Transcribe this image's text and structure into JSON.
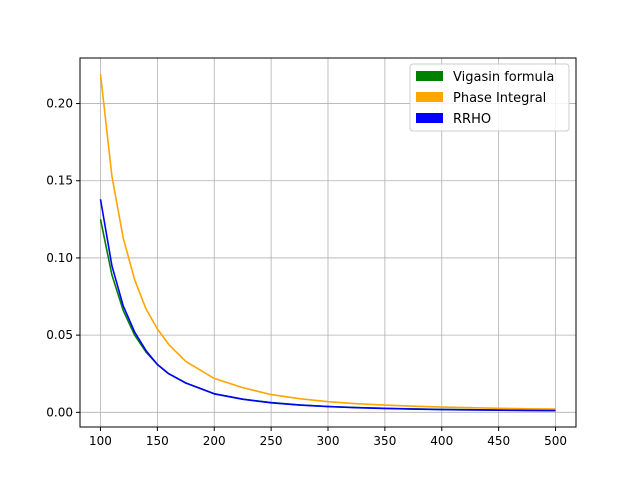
{
  "chart_data": {
    "type": "line",
    "title": "",
    "xlabel": "",
    "ylabel": "",
    "xlim": [
      82,
      518
    ],
    "ylim": [
      -0.0095,
      0.2295
    ],
    "x_ticks": [
      100,
      150,
      200,
      250,
      300,
      350,
      400,
      450,
      500
    ],
    "x_tick_labels": [
      "100",
      "150",
      "200",
      "250",
      "300",
      "350",
      "400",
      "450",
      "500"
    ],
    "y_ticks": [
      0.0,
      0.05,
      0.1,
      0.15,
      0.2
    ],
    "y_tick_labels": [
      "0.00",
      "0.05",
      "0.10",
      "0.15",
      "0.20"
    ],
    "grid": true,
    "legend_position": "top-right",
    "x": [
      100,
      110,
      120,
      130,
      140,
      150,
      160,
      175,
      200,
      225,
      250,
      275,
      300,
      325,
      350,
      375,
      400,
      425,
      450,
      475,
      500
    ],
    "series": [
      {
        "name": "Vigasin formula",
        "color": "#008000",
        "legend_swatch": "filled-rectangle",
        "values": [
          0.125,
          0.089,
          0.066,
          0.05,
          0.039,
          0.031,
          0.025,
          0.019,
          0.012,
          0.0085,
          0.0063,
          0.0048,
          0.0038,
          0.0031,
          0.0026,
          0.0022,
          0.0019,
          0.0017,
          0.0015,
          0.0013,
          0.0012
        ]
      },
      {
        "name": "Phase Integral",
        "color": "#ffa500",
        "legend_swatch": "filled-rectangle",
        "values": [
          0.219,
          0.153,
          0.113,
          0.086,
          0.067,
          0.054,
          0.044,
          0.033,
          0.022,
          0.016,
          0.0115,
          0.0088,
          0.0069,
          0.0056,
          0.0047,
          0.004,
          0.0034,
          0.003,
          0.0026,
          0.0023,
          0.0021
        ]
      },
      {
        "name": "RRHO",
        "color": "#0000ff",
        "legend_swatch": "filled-rectangle",
        "values": [
          0.138,
          0.095,
          0.069,
          0.052,
          0.04,
          0.031,
          0.025,
          0.019,
          0.012,
          0.0085,
          0.0062,
          0.0047,
          0.0037,
          0.003,
          0.0025,
          0.0021,
          0.0018,
          0.0016,
          0.0014,
          0.0012,
          0.0011
        ]
      }
    ]
  }
}
